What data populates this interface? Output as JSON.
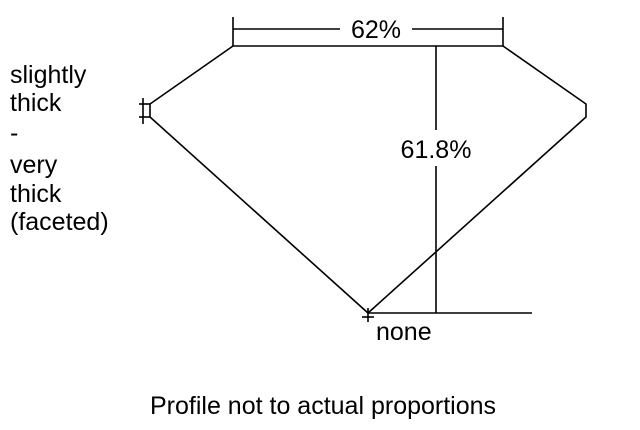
{
  "girdle_label": [
    "slightly",
    "thick",
    "-",
    "very",
    "thick",
    "(faceted)"
  ],
  "table_label": "62%",
  "depth_label": "61.8%",
  "culet_label": "none",
  "footer_note": "Profile not to actual proportions",
  "colors": {
    "line": "#000000",
    "background": "#ffffff"
  }
}
